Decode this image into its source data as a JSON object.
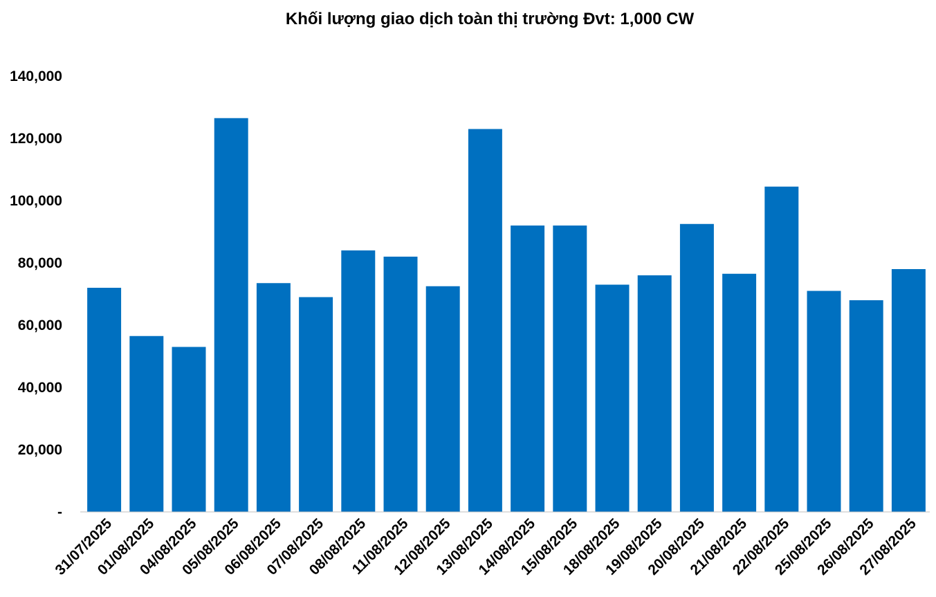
{
  "chart_data": {
    "type": "bar",
    "title": "Khối lượng giao dịch toàn thị trường Đvt: 1,000 CW",
    "xlabel": "",
    "ylabel": "",
    "ylim": [
      0,
      140000
    ],
    "yticks": [
      {
        "value": 0,
        "label": "-"
      },
      {
        "value": 20000,
        "label": "20,000"
      },
      {
        "value": 40000,
        "label": "40,000"
      },
      {
        "value": 60000,
        "label": "60,000"
      },
      {
        "value": 80000,
        "label": "80,000"
      },
      {
        "value": 100000,
        "label": "100,000"
      },
      {
        "value": 120000,
        "label": "120,000"
      },
      {
        "value": 140000,
        "label": "140,000"
      }
    ],
    "grid": false,
    "legend": "none",
    "bar_color": "#0070C0",
    "categories": [
      "31/07/2025",
      "01/08/2025",
      "04/08/2025",
      "05/08/2025",
      "06/08/2025",
      "07/08/2025",
      "08/08/2025",
      "11/08/2025",
      "12/08/2025",
      "13/08/2025",
      "14/08/2025",
      "15/08/2025",
      "18/08/2025",
      "19/08/2025",
      "20/08/2025",
      "21/08/2025",
      "22/08/2025",
      "25/08/2025",
      "26/08/2025",
      "27/08/2025"
    ],
    "values": [
      72000,
      56500,
      53000,
      126500,
      73500,
      69000,
      84000,
      82000,
      72500,
      123000,
      92000,
      92000,
      73000,
      76000,
      92500,
      76500,
      104500,
      71000,
      68000,
      78000
    ]
  }
}
